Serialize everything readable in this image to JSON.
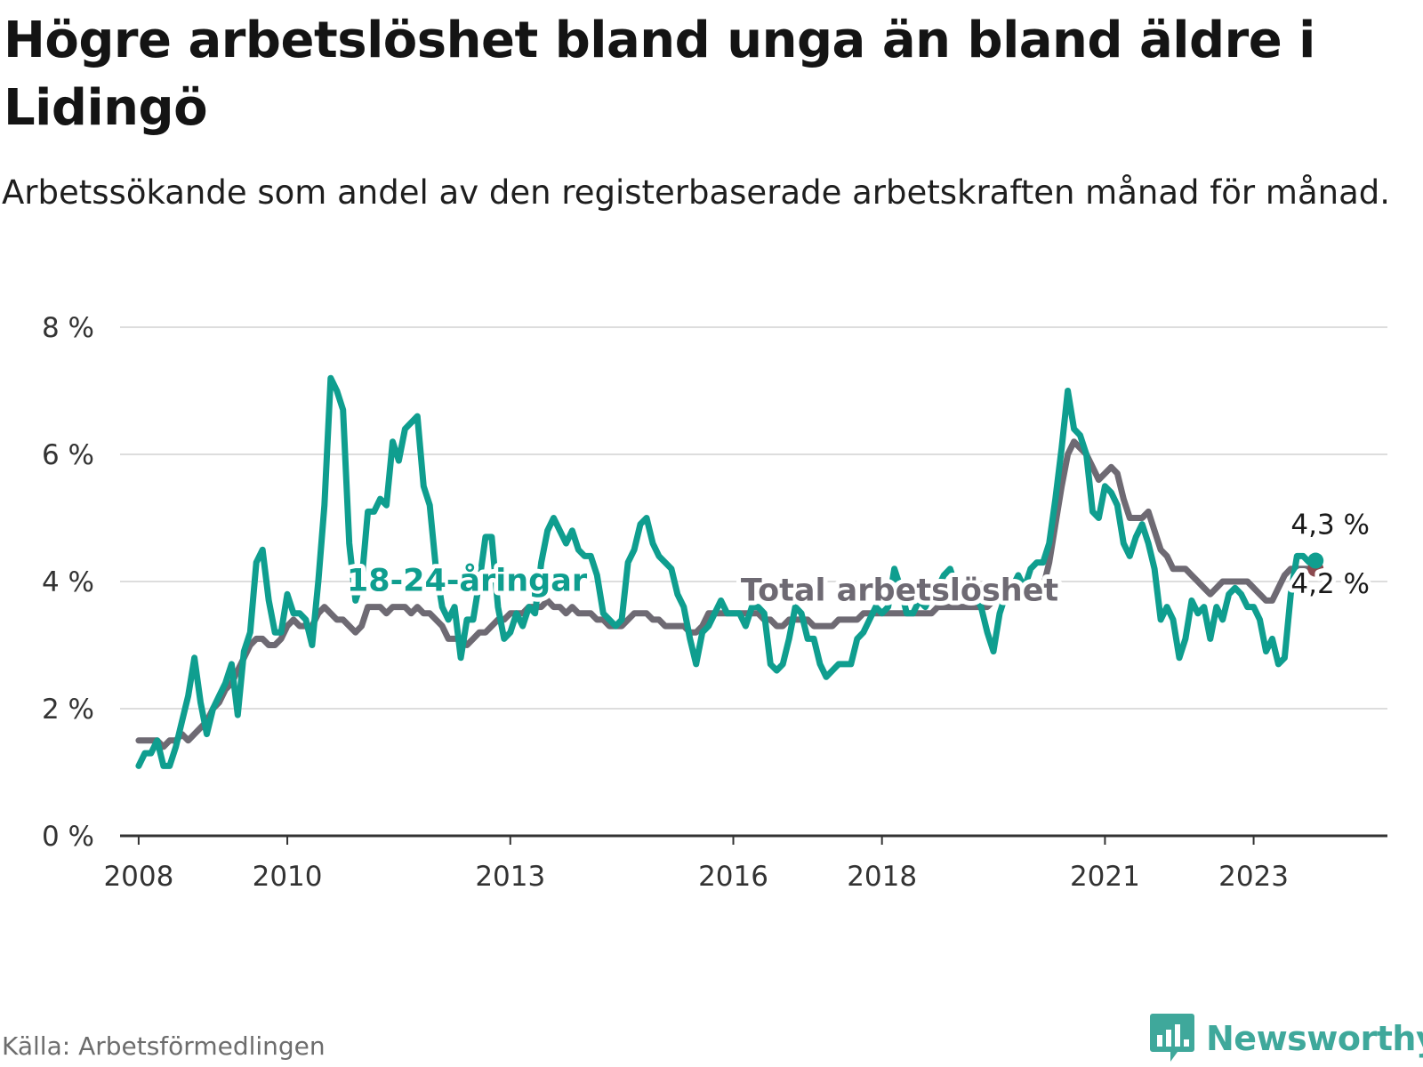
{
  "header": {
    "title": "Högre arbetslöshet bland unga än bland äldre i Lidingö",
    "subtitle": "Arbetssökande som andel av den registerbaserade arbetskraften månad för månad."
  },
  "footer": {
    "source": "Källa: Arbetsförmedlingen",
    "brand": "Newsworthy",
    "brand_icon": "newsworthy-logo-icon"
  },
  "colors": {
    "youth": "#0f9e8f",
    "total": "#6e6a73",
    "grid": "#dddddd",
    "axis": "#333333",
    "end_dot": "#8b4a4f"
  },
  "chart_data": {
    "type": "line",
    "title": "Högre arbetslöshet bland unga än bland äldre i Lidingö",
    "xlabel": "",
    "ylabel": "",
    "x_start": 2008,
    "x_step_months": 1,
    "xlim": [
      2007.75,
      2024.8
    ],
    "ylim": [
      0,
      8
    ],
    "y_ticks": [
      0,
      2,
      4,
      6,
      8
    ],
    "y_tick_labels": [
      "0 %",
      "2 %",
      "4 %",
      "6 %",
      "8 %"
    ],
    "x_ticks": [
      2008,
      2010,
      2013,
      2016,
      2018,
      2021,
      2023
    ],
    "x_tick_labels": [
      "2008",
      "2010",
      "2013",
      "2016",
      "2018",
      "2021",
      "2023"
    ],
    "grid": true,
    "series": [
      {
        "name": "18-24-åringar",
        "label": "18-24-åringar",
        "end_label": "4,3 %",
        "values": [
          1.1,
          1.3,
          1.3,
          1.5,
          1.1,
          1.1,
          1.4,
          1.8,
          2.2,
          2.8,
          2.1,
          1.6,
          2.0,
          2.2,
          2.4,
          2.7,
          1.9,
          2.9,
          3.2,
          4.3,
          4.5,
          3.7,
          3.2,
          3.2,
          3.8,
          3.5,
          3.5,
          3.4,
          3.0,
          4.0,
          5.2,
          7.2,
          7.0,
          6.7,
          4.6,
          3.7,
          4.0,
          5.1,
          5.1,
          5.3,
          5.2,
          6.2,
          5.9,
          6.4,
          6.5,
          6.6,
          5.5,
          5.2,
          4.2,
          3.6,
          3.4,
          3.6,
          2.8,
          3.4,
          3.4,
          4.0,
          4.7,
          4.7,
          3.6,
          3.1,
          3.2,
          3.5,
          3.3,
          3.6,
          3.5,
          4.3,
          4.8,
          5.0,
          4.8,
          4.6,
          4.8,
          4.5,
          4.4,
          4.4,
          4.1,
          3.5,
          3.4,
          3.3,
          3.4,
          4.3,
          4.5,
          4.9,
          5.0,
          4.6,
          4.4,
          4.3,
          4.2,
          3.8,
          3.6,
          3.1,
          2.7,
          3.2,
          3.3,
          3.5,
          3.7,
          3.5,
          3.5,
          3.5,
          3.3,
          3.6,
          3.6,
          3.5,
          2.7,
          2.6,
          2.7,
          3.1,
          3.6,
          3.5,
          3.1,
          3.1,
          2.7,
          2.5,
          2.6,
          2.7,
          2.7,
          2.7,
          3.1,
          3.2,
          3.4,
          3.6,
          3.5,
          3.6,
          4.2,
          3.9,
          3.5,
          3.5,
          3.7,
          3.6,
          3.8,
          3.9,
          4.1,
          4.2,
          3.9,
          3.9,
          3.9,
          3.8,
          3.6,
          3.2,
          2.9,
          3.5,
          3.8,
          3.9,
          4.1,
          3.9,
          4.2,
          4.3,
          4.3,
          4.6,
          5.3,
          6.1,
          7.0,
          6.4,
          6.3,
          6.0,
          5.1,
          5.0,
          5.5,
          5.4,
          5.2,
          4.6,
          4.4,
          4.7,
          4.9,
          4.6,
          4.2,
          3.4,
          3.6,
          3.4,
          2.8,
          3.1,
          3.7,
          3.5,
          3.6,
          3.1,
          3.6,
          3.4,
          3.8,
          3.9,
          3.8,
          3.6,
          3.6,
          3.4,
          2.9,
          3.1,
          2.7,
          2.8,
          3.8,
          4.4,
          4.4,
          4.3,
          4.3
        ]
      },
      {
        "name": "Total arbetslöshet",
        "label": "Total arbetslöshet",
        "end_label": "4,2 %",
        "values": [
          1.5,
          1.5,
          1.5,
          1.5,
          1.4,
          1.5,
          1.5,
          1.6,
          1.5,
          1.6,
          1.7,
          1.8,
          2.0,
          2.1,
          2.3,
          2.4,
          2.6,
          2.8,
          3.0,
          3.1,
          3.1,
          3.0,
          3.0,
          3.1,
          3.3,
          3.4,
          3.3,
          3.3,
          3.3,
          3.5,
          3.6,
          3.5,
          3.4,
          3.4,
          3.3,
          3.2,
          3.3,
          3.6,
          3.6,
          3.6,
          3.5,
          3.6,
          3.6,
          3.6,
          3.5,
          3.6,
          3.5,
          3.5,
          3.4,
          3.3,
          3.1,
          3.1,
          3.1,
          3.0,
          3.1,
          3.2,
          3.2,
          3.3,
          3.4,
          3.4,
          3.5,
          3.5,
          3.5,
          3.6,
          3.6,
          3.6,
          3.7,
          3.6,
          3.6,
          3.5,
          3.6,
          3.5,
          3.5,
          3.5,
          3.4,
          3.4,
          3.3,
          3.3,
          3.3,
          3.4,
          3.5,
          3.5,
          3.5,
          3.4,
          3.4,
          3.3,
          3.3,
          3.3,
          3.3,
          3.2,
          3.2,
          3.3,
          3.5,
          3.5,
          3.5,
          3.5,
          3.5,
          3.5,
          3.5,
          3.5,
          3.5,
          3.4,
          3.4,
          3.3,
          3.3,
          3.4,
          3.4,
          3.4,
          3.4,
          3.3,
          3.3,
          3.3,
          3.3,
          3.4,
          3.4,
          3.4,
          3.4,
          3.5,
          3.5,
          3.5,
          3.5,
          3.5,
          3.5,
          3.5,
          3.5,
          3.5,
          3.5,
          3.5,
          3.5,
          3.6,
          3.6,
          3.6,
          3.6,
          3.6,
          3.6,
          3.6,
          3.6,
          3.6,
          3.7,
          3.7,
          3.7,
          3.7,
          3.7,
          3.8,
          3.8,
          3.8,
          3.9,
          4.3,
          4.9,
          5.5,
          6.0,
          6.2,
          6.1,
          6.0,
          5.8,
          5.6,
          5.7,
          5.8,
          5.7,
          5.3,
          5.0,
          5.0,
          5.0,
          5.1,
          4.8,
          4.5,
          4.4,
          4.2,
          4.2,
          4.2,
          4.1,
          4.0,
          3.9,
          3.8,
          3.9,
          4.0,
          4.0,
          4.0,
          4.0,
          4.0,
          3.9,
          3.8,
          3.7,
          3.7,
          3.9,
          4.1,
          4.2,
          4.2,
          4.2,
          4.2,
          4.2
        ]
      }
    ]
  }
}
